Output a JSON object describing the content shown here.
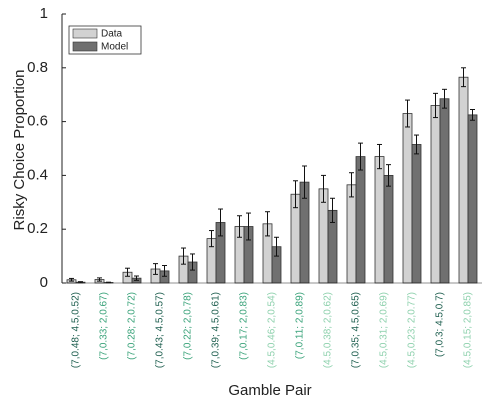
{
  "chart_data": {
    "type": "bar",
    "x_label": "Gamble Pair",
    "y_label": "Risky Choice Proportion",
    "categories": [
      "(7,0.48; 4.5,0.52)",
      "(7,0.33; 2,0.67)",
      "(7,0.28; 2,0.72)",
      "(7,0.43; 4.5,0.57)",
      "(7,0.22; 2,0.78)",
      "(7,0.39; 4.5,0.61)",
      "(7,0.17; 2,0.83)",
      "(4.5,0.46; 2,0.54)",
      "(7,0.11; 2,0.89)",
      "(4.5,0.38; 2,0.62)",
      "(7,0.35; 4.5,0.65)",
      "(4.5,0.31; 2,0.69)",
      "(4.5,0.23; 2,0.77)",
      "(7,0.3; 4.5,0.7)",
      "(4.5,0.15; 2,0.85)"
    ],
    "category_colors": [
      "#1d5e4e",
      "#3aa37a",
      "#3aa37a",
      "#1d5e4e",
      "#3aa37a",
      "#1d5e4e",
      "#3aa37a",
      "#8ed1ad",
      "#3aa37a",
      "#8ed1ad",
      "#1d5e4e",
      "#8ed1ad",
      "#8ed1ad",
      "#1d5e4e",
      "#8ed1ad"
    ],
    "series": [
      {
        "name": "Data",
        "color": "#d2d2d2",
        "values": [
          0.012,
          0.013,
          0.04,
          0.052,
          0.1,
          0.165,
          0.21,
          0.22,
          0.33,
          0.35,
          0.365,
          0.47,
          0.63,
          0.66,
          0.765
        ],
        "errors": [
          0.005,
          0.006,
          0.015,
          0.02,
          0.03,
          0.03,
          0.04,
          0.045,
          0.05,
          0.05,
          0.045,
          0.045,
          0.05,
          0.045,
          0.035
        ]
      },
      {
        "name": "Model",
        "color": "#707070",
        "values": [
          0.003,
          0.002,
          0.018,
          0.045,
          0.078,
          0.225,
          0.21,
          0.135,
          0.375,
          0.27,
          0.47,
          0.4,
          0.515,
          0.685,
          0.625
        ],
        "errors": [
          0.002,
          0.001,
          0.008,
          0.02,
          0.03,
          0.05,
          0.05,
          0.035,
          0.06,
          0.045,
          0.05,
          0.04,
          0.035,
          0.035,
          0.02
        ]
      }
    ],
    "ylim": [
      0,
      1
    ],
    "yticks": [
      0,
      0.2,
      0.4,
      0.6,
      0.8,
      1
    ],
    "legend": "upper left"
  }
}
